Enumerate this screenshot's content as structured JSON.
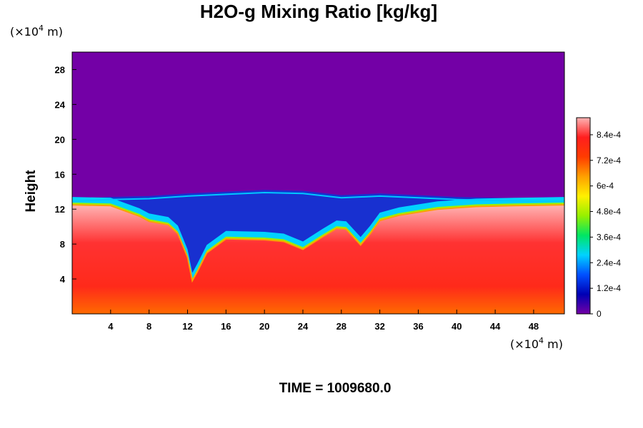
{
  "chart_data": {
    "type": "heatmap",
    "title": "H2O-g Mixing Ratio [kg/kg]",
    "ylabel": "Height",
    "x_unit_prefix": "(×10",
    "x_unit_exp": "4",
    "x_unit_suffix": " m)",
    "y_unit_prefix": "(×10",
    "y_unit_exp": "4",
    "y_unit_suffix": " m)",
    "x_ticks": [
      4,
      8,
      12,
      16,
      20,
      24,
      28,
      32,
      36,
      40,
      44,
      48
    ],
    "y_ticks": [
      4,
      8,
      12,
      16,
      20,
      24,
      28
    ],
    "xlim": [
      0,
      51.2
    ],
    "ylim": [
      0,
      30
    ],
    "colorbar_range": [
      0,
      0.00092
    ],
    "colorbar_ticks": [
      {
        "value": 0,
        "label": "0"
      },
      {
        "value": 0.00012,
        "label": "1.2e-4"
      },
      {
        "value": 0.00024,
        "label": "2.4e-4"
      },
      {
        "value": 0.00036,
        "label": "3.6e-4"
      },
      {
        "value": 0.00048,
        "label": "4.8e-4"
      },
      {
        "value": 0.0006,
        "label": "6e-4"
      },
      {
        "value": 0.00072,
        "label": "7.2e-4"
      },
      {
        "value": 0.00084,
        "label": "8.4e-4"
      }
    ],
    "colormap": [
      "#7300a6",
      "#0000b4",
      "#0050ff",
      "#00d2ff",
      "#00e664",
      "#96f000",
      "#fff000",
      "#ffa000",
      "#ff3c00",
      "#ff1e1e",
      "#ffb4b4"
    ],
    "background_value": 0,
    "cloud_top_profile": [
      {
        "x": 0,
        "top": 13.2
      },
      {
        "x": 4,
        "top": 13.4
      },
      {
        "x": 8,
        "top": 13.5
      },
      {
        "x": 12,
        "top": 13.8
      },
      {
        "x": 16,
        "top": 14.0
      },
      {
        "x": 20,
        "top": 14.2
      },
      {
        "x": 24,
        "top": 14.1
      },
      {
        "x": 28,
        "top": 13.6
      },
      {
        "x": 32,
        "top": 13.8
      },
      {
        "x": 36,
        "top": 13.6
      },
      {
        "x": 40,
        "top": 13.4
      },
      {
        "x": 44,
        "top": 13.3
      },
      {
        "x": 48,
        "top": 13.2
      },
      {
        "x": 51.2,
        "top": 13.2
      }
    ],
    "moist_layer_top_profile": [
      {
        "x": 0,
        "top": 12.5
      },
      {
        "x": 4,
        "top": 12.4
      },
      {
        "x": 7,
        "top": 11.2
      },
      {
        "x": 8,
        "top": 10.6
      },
      {
        "x": 10,
        "top": 10.2
      },
      {
        "x": 11,
        "top": 9.2
      },
      {
        "x": 12,
        "top": 6.5
      },
      {
        "x": 12.5,
        "top": 3.8
      },
      {
        "x": 13,
        "top": 4.8
      },
      {
        "x": 14,
        "top": 7.0
      },
      {
        "x": 16,
        "top": 8.6
      },
      {
        "x": 20,
        "top": 8.5
      },
      {
        "x": 22,
        "top": 8.3
      },
      {
        "x": 24,
        "top": 7.4
      },
      {
        "x": 26,
        "top": 8.8
      },
      {
        "x": 27.5,
        "top": 9.8
      },
      {
        "x": 28.5,
        "top": 9.7
      },
      {
        "x": 30,
        "top": 7.9
      },
      {
        "x": 31,
        "top": 9.2
      },
      {
        "x": 32,
        "top": 10.7
      },
      {
        "x": 34,
        "top": 11.3
      },
      {
        "x": 38,
        "top": 12.0
      },
      {
        "x": 42,
        "top": 12.3
      },
      {
        "x": 46,
        "top": 12.4
      },
      {
        "x": 51.2,
        "top": 12.5
      }
    ],
    "time_label": "TIME = 1009680.0"
  }
}
